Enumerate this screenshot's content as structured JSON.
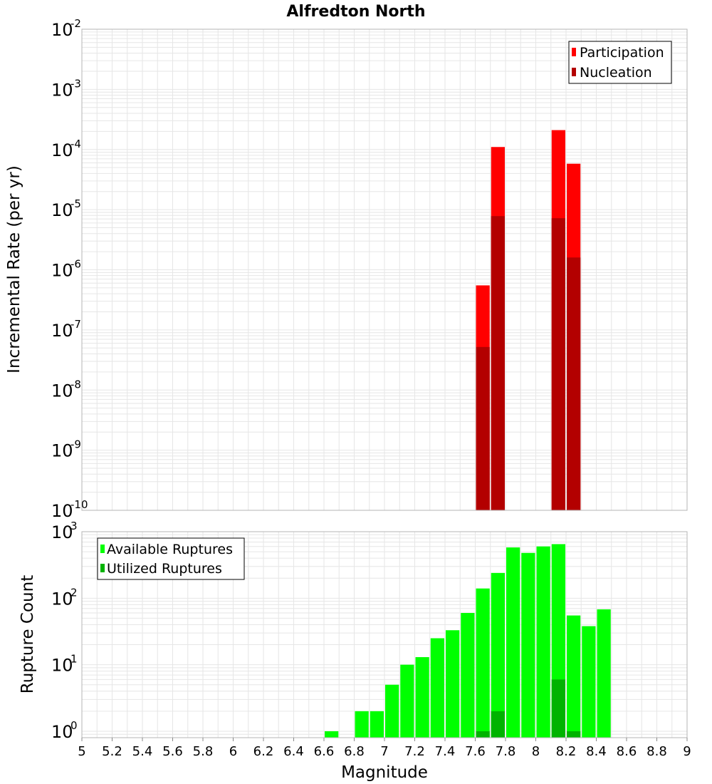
{
  "chart_data": [
    {
      "type": "bar",
      "title": "Alfredton North",
      "xlabel": "Magnitude",
      "ylabel": "Incremental Rate (per yr)",
      "yscale": "log",
      "ylim": [
        1e-10,
        0.01
      ],
      "xlim": [
        5,
        9
      ],
      "grid": true,
      "legend_position": "top-right",
      "y_tick_labels": [
        {
          "base": "10",
          "exp": "-2",
          "value": 0.01
        },
        {
          "base": "10",
          "exp": "-3",
          "value": 0.001
        },
        {
          "base": "10",
          "exp": "-4",
          "value": 0.0001
        },
        {
          "base": "10",
          "exp": "-5",
          "value": 1e-05
        },
        {
          "base": "10",
          "exp": "-6",
          "value": 1e-06
        },
        {
          "base": "10",
          "exp": "-7",
          "value": 1e-07
        },
        {
          "base": "10",
          "exp": "-8",
          "value": 1e-08
        },
        {
          "base": "10",
          "exp": "-9",
          "value": 1e-09
        },
        {
          "base": "10",
          "exp": "-10",
          "value": 1e-10
        }
      ],
      "bar_width": 0.1,
      "series": [
        {
          "name": "Participation",
          "color": "#ff0000",
          "x": [
            7.65,
            7.75,
            8.15,
            8.25
          ],
          "values": [
            5.5e-07,
            0.00011,
            0.00021,
            5.8e-05
          ]
        },
        {
          "name": "Nucleation",
          "color": "#b30000",
          "x": [
            7.65,
            7.75,
            8.15,
            8.25
          ],
          "values": [
            5.2e-08,
            7.8e-06,
            7.2e-06,
            1.6e-06
          ]
        }
      ]
    },
    {
      "type": "bar",
      "xlabel": "Magnitude",
      "ylabel": "Rupture Count",
      "yscale": "log",
      "ylim": [
        0.8,
        1000
      ],
      "xlim": [
        5,
        9
      ],
      "grid": true,
      "legend_position": "top-left",
      "y_tick_labels": [
        {
          "base": "10",
          "exp": "3",
          "value": 1000
        },
        {
          "base": "10",
          "exp": "2",
          "value": 100
        },
        {
          "base": "10",
          "exp": "1",
          "value": 10
        },
        {
          "base": "10",
          "exp": "0",
          "value": 1
        }
      ],
      "x_tick_labels": [
        "5",
        "5.2",
        "5.4",
        "5.6",
        "5.8",
        "6",
        "6.2",
        "6.4",
        "6.6",
        "6.8",
        "7",
        "7.2",
        "7.4",
        "7.6",
        "7.8",
        "8",
        "8.2",
        "8.4",
        "8.6",
        "8.8",
        "9"
      ],
      "bar_width": 0.1,
      "series": [
        {
          "name": "Available Ruptures",
          "color": "#00ff00",
          "x": [
            6.65,
            6.85,
            6.95,
            7.05,
            7.15,
            7.25,
            7.35,
            7.45,
            7.55,
            7.65,
            7.75,
            7.85,
            7.95,
            8.05,
            8.15,
            8.25,
            8.35,
            8.45
          ],
          "values": [
            1,
            2,
            2,
            5,
            10,
            13,
            25,
            33,
            60,
            140,
            240,
            580,
            480,
            600,
            650,
            55,
            38,
            68
          ]
        },
        {
          "name": "Utilized Ruptures",
          "color": "#00b300",
          "x": [
            7.65,
            7.75,
            8.15,
            8.25
          ],
          "values": [
            1,
            2,
            6,
            1
          ]
        }
      ]
    }
  ]
}
